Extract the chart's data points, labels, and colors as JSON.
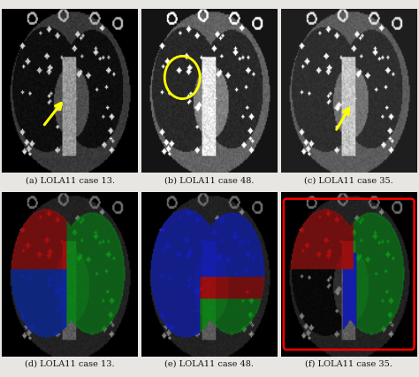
{
  "figsize": [
    4.74,
    4.27
  ],
  "dpi": 100,
  "background_color": "#e8e6e2",
  "captions": [
    "(a) LOLA11 case 13.",
    "(b) LOLA11 case 48.",
    "(c) LOLA11 case 35.",
    "(d) LOLA11 case 13.",
    "(e) LOLA11 case 48.",
    "(f) LOLA11 case 35."
  ],
  "caption_fontsize": 7.0,
  "arrow_color": "#ffff00",
  "circle_color": "#ffff00",
  "img_size": 128
}
